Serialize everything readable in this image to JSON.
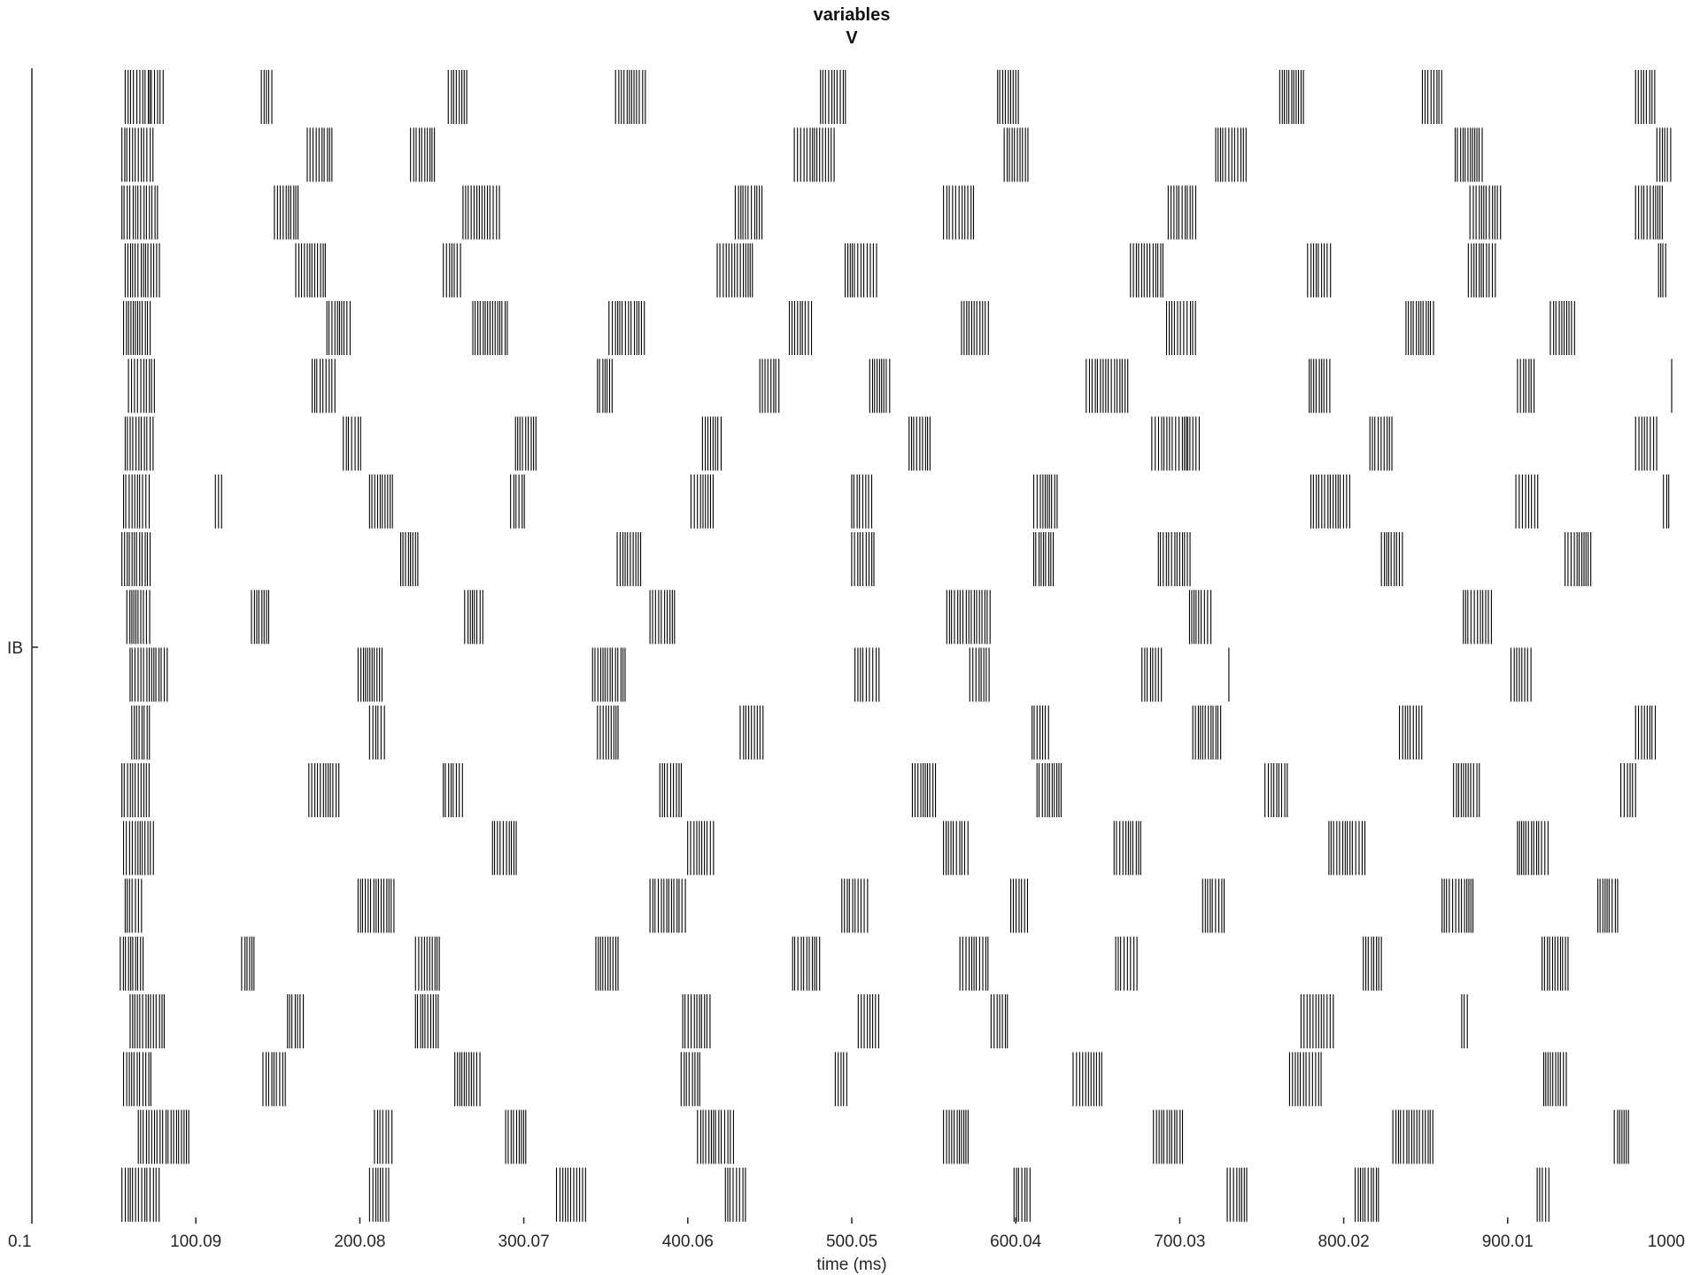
{
  "chart_data": {
    "type": "raster",
    "title": "variables",
    "subtitle": "V",
    "xlabel": "time (ms)",
    "ylabel": "",
    "xlim": [
      0.1,
      1000
    ],
    "x_ticks": [
      "0.1",
      "100.09",
      "200.08",
      "300.07",
      "400.06",
      "500.05",
      "600.04",
      "700.03",
      "800.02",
      "900.01",
      "1000"
    ],
    "y_ticks": [
      "IB"
    ],
    "grid": false,
    "color": "#000000",
    "series": [
      {
        "trains": [
          [
            57,
            72,
            81
          ],
          [
            140,
            148
          ],
          [
            254,
            266
          ],
          [
            356,
            375
          ],
          [
            481,
            497
          ],
          [
            589,
            603
          ],
          [
            761,
            777
          ],
          [
            848,
            860
          ],
          [
            978,
            991
          ]
        ]
      },
      {
        "trains": [
          [
            55,
            75
          ],
          [
            168,
            184
          ],
          [
            231,
            247
          ],
          [
            465,
            490
          ],
          [
            593,
            608
          ],
          [
            722,
            741
          ],
          [
            868,
            886
          ],
          [
            991,
            1000
          ]
        ]
      },
      {
        "trains": [
          [
            55,
            77
          ],
          [
            148,
            163
          ],
          [
            263,
            286
          ],
          [
            429,
            446
          ],
          [
            556,
            576
          ],
          [
            693,
            711
          ],
          [
            877,
            896
          ],
          [
            978,
            995
          ]
        ]
      },
      {
        "trains": [
          [
            57,
            79
          ],
          [
            161,
            180
          ],
          [
            251,
            263
          ],
          [
            418,
            441
          ],
          [
            496,
            516
          ],
          [
            670,
            690
          ],
          [
            778,
            792
          ],
          [
            876,
            893
          ],
          [
            992,
            998
          ]
        ]
      },
      {
        "trains": [
          [
            56,
            73
          ],
          [
            180,
            195
          ],
          [
            269,
            290
          ],
          [
            352,
            374
          ],
          [
            462,
            477
          ],
          [
            567,
            585
          ],
          [
            692,
            710
          ],
          [
            838,
            856
          ],
          [
            926,
            941
          ]
        ]
      },
      {
        "trains": [
          [
            59,
            75
          ],
          [
            171,
            185
          ],
          [
            345,
            355
          ],
          [
            444,
            456
          ],
          [
            511,
            524
          ],
          [
            643,
            670
          ],
          [
            779,
            793
          ],
          [
            906,
            917
          ],
          [
            1000
          ]
        ]
      },
      {
        "trains": [
          [
            57,
            75
          ],
          [
            190,
            201
          ],
          [
            295,
            309
          ],
          [
            409,
            421
          ],
          [
            535,
            548
          ],
          [
            683,
            704,
            713
          ],
          [
            816,
            831
          ],
          [
            978,
            991
          ]
        ]
      },
      {
        "trains": [
          [
            56,
            73
          ],
          [
            112,
            117
          ],
          [
            206,
            221
          ],
          [
            292,
            302
          ],
          [
            402,
            416
          ],
          [
            500,
            513
          ],
          [
            611,
            627
          ],
          [
            780,
            804
          ],
          [
            905,
            920
          ],
          [
            995,
            999
          ]
        ]
      },
      {
        "trains": [
          [
            55,
            73
          ],
          [
            225,
            236
          ],
          [
            357,
            372
          ],
          [
            500,
            514
          ],
          [
            611,
            624
          ],
          [
            687,
            707
          ],
          [
            823,
            837
          ],
          [
            935,
            951
          ]
        ]
      },
      {
        "trains": [
          [
            58,
            73
          ],
          [
            134,
            146
          ],
          [
            264,
            276
          ],
          [
            377,
            393
          ],
          [
            558,
            585
          ],
          [
            706,
            720
          ],
          [
            873,
            891
          ]
        ]
      },
      {
        "trains": [
          [
            60,
            84
          ],
          [
            199,
            215
          ],
          [
            342,
            362
          ],
          [
            502,
            518
          ],
          [
            572,
            584
          ],
          [
            677,
            689
          ],
          [
            730
          ],
          [
            902,
            916
          ]
        ]
      },
      {
        "trains": [
          [
            61,
            72
          ],
          [
            206,
            216
          ],
          [
            345,
            358
          ],
          [
            432,
            447
          ],
          [
            610,
            621
          ],
          [
            708,
            726
          ],
          [
            834,
            848
          ],
          [
            978,
            991
          ]
        ]
      },
      {
        "trains": [
          [
            55,
            73
          ],
          [
            169,
            188
          ],
          [
            251,
            263
          ],
          [
            383,
            398
          ],
          [
            537,
            552
          ],
          [
            613,
            628
          ],
          [
            752,
            767
          ],
          [
            867,
            883
          ],
          [
            969,
            979
          ]
        ]
      },
      {
        "trains": [
          [
            56,
            75
          ],
          [
            281,
            296
          ],
          [
            400,
            416
          ],
          [
            556,
            571
          ],
          [
            660,
            677
          ],
          [
            791,
            813
          ],
          [
            906,
            926
          ]
        ]
      },
      {
        "trains": [
          [
            57,
            67
          ],
          [
            199,
            221
          ],
          [
            377,
            400
          ],
          [
            494,
            510
          ],
          [
            597,
            608
          ],
          [
            714,
            729
          ],
          [
            860,
            880
          ],
          [
            955,
            968
          ]
        ]
      },
      {
        "trains": [
          [
            54,
            69
          ],
          [
            128,
            137
          ],
          [
            234,
            250
          ],
          [
            344,
            358
          ],
          [
            464,
            481
          ],
          [
            566,
            584
          ],
          [
            661,
            674
          ],
          [
            812,
            823
          ],
          [
            921,
            938
          ]
        ]
      },
      {
        "trains": [
          [
            60,
            82
          ],
          [
            156,
            167
          ],
          [
            234,
            248
          ],
          [
            397,
            414
          ],
          [
            504,
            518
          ],
          [
            585,
            595
          ],
          [
            774,
            795
          ],
          [
            872,
            877
          ]
        ]
      },
      {
        "trains": [
          [
            56,
            74
          ],
          [
            141,
            155
          ],
          [
            258,
            275
          ],
          [
            396,
            409
          ],
          [
            490,
            499
          ],
          [
            635,
            653
          ],
          [
            767,
            787
          ],
          [
            922,
            936
          ]
        ]
      },
      {
        "trains": [
          [
            65,
            97
          ],
          [
            209,
            221
          ],
          [
            289,
            302
          ],
          [
            406,
            428
          ],
          [
            556,
            571
          ],
          [
            684,
            702
          ],
          [
            830,
            855
          ],
          [
            965,
            975
          ]
        ]
      },
      {
        "trains": [
          [
            55,
            78
          ],
          [
            206,
            219
          ],
          [
            320,
            338
          ],
          [
            423,
            436
          ],
          [
            599,
            610
          ],
          [
            729,
            742
          ],
          [
            807,
            822
          ],
          [
            918,
            926
          ]
        ]
      }
    ]
  }
}
